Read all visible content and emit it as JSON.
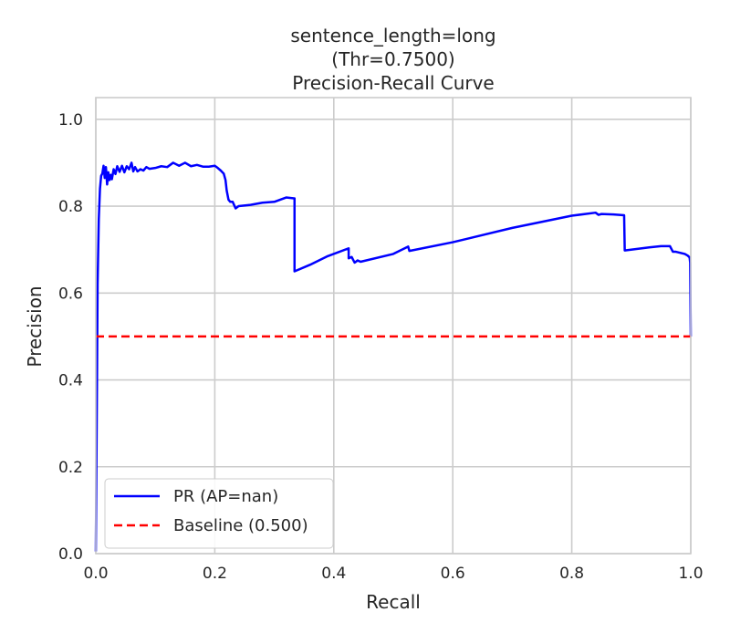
{
  "chart_data": {
    "type": "line",
    "title_lines": [
      "sentence_length=long",
      "(Thr=0.7500)",
      "Precision-Recall Curve"
    ],
    "xlabel": "Recall",
    "ylabel": "Precision",
    "xlim": [
      0.0,
      1.0
    ],
    "ylim": [
      0.0,
      1.05
    ],
    "xticks": [
      0.0,
      0.2,
      0.4,
      0.6,
      0.8,
      1.0
    ],
    "xtick_labels": [
      "0.0",
      "0.2",
      "0.4",
      "0.6",
      "0.8",
      "1.0"
    ],
    "yticks": [
      0.0,
      0.2,
      0.4,
      0.6,
      0.8,
      1.0
    ],
    "ytick_labels": [
      "0.0",
      "0.2",
      "0.4",
      "0.6",
      "0.8",
      "1.0"
    ],
    "grid": true,
    "legend_position": "lower-left",
    "series": [
      {
        "name": "PR (AP=nan)",
        "color": "#0000ff",
        "style": "solid",
        "x": [
          0.0,
          0.002,
          0.003,
          0.005,
          0.007,
          0.009,
          0.011,
          0.013,
          0.015,
          0.017,
          0.019,
          0.021,
          0.023,
          0.025,
          0.027,
          0.03,
          0.033,
          0.036,
          0.04,
          0.044,
          0.048,
          0.052,
          0.056,
          0.06,
          0.063,
          0.066,
          0.07,
          0.075,
          0.08,
          0.085,
          0.09,
          0.1,
          0.11,
          0.12,
          0.13,
          0.14,
          0.15,
          0.16,
          0.17,
          0.18,
          0.19,
          0.2,
          0.205,
          0.21,
          0.215,
          0.218,
          0.22,
          0.223,
          0.226,
          0.23,
          0.235,
          0.24,
          0.26,
          0.28,
          0.3,
          0.32,
          0.333,
          0.334,
          0.334,
          0.36,
          0.39,
          0.425,
          0.425,
          0.43,
          0.435,
          0.44,
          0.445,
          0.5,
          0.525,
          0.527,
          0.6,
          0.7,
          0.8,
          0.84,
          0.845,
          0.85,
          0.87,
          0.888,
          0.889,
          0.93,
          0.95,
          0.965,
          0.97,
          0.975,
          0.99,
          0.995,
          0.998,
          0.999,
          1.0
        ],
        "y": [
          0.005,
          0.4,
          0.62,
          0.77,
          0.84,
          0.87,
          0.875,
          0.893,
          0.865,
          0.89,
          0.85,
          0.878,
          0.86,
          0.872,
          0.862,
          0.885,
          0.874,
          0.892,
          0.879,
          0.893,
          0.878,
          0.892,
          0.885,
          0.9,
          0.88,
          0.89,
          0.88,
          0.885,
          0.882,
          0.89,
          0.886,
          0.888,
          0.892,
          0.89,
          0.9,
          0.893,
          0.9,
          0.892,
          0.895,
          0.891,
          0.891,
          0.893,
          0.888,
          0.882,
          0.875,
          0.86,
          0.836,
          0.815,
          0.81,
          0.81,
          0.795,
          0.8,
          0.803,
          0.808,
          0.81,
          0.82,
          0.818,
          0.818,
          0.65,
          0.665,
          0.685,
          0.703,
          0.68,
          0.683,
          0.67,
          0.675,
          0.672,
          0.69,
          0.707,
          0.697,
          0.717,
          0.75,
          0.778,
          0.785,
          0.78,
          0.782,
          0.781,
          0.779,
          0.698,
          0.705,
          0.708,
          0.708,
          0.695,
          0.695,
          0.69,
          0.686,
          0.682,
          0.67,
          0.5
        ]
      },
      {
        "name": "Baseline (0.500)",
        "color": "#ff0000",
        "style": "dashed",
        "x": [
          0.0,
          1.0
        ],
        "y": [
          0.5,
          0.5
        ]
      }
    ]
  }
}
